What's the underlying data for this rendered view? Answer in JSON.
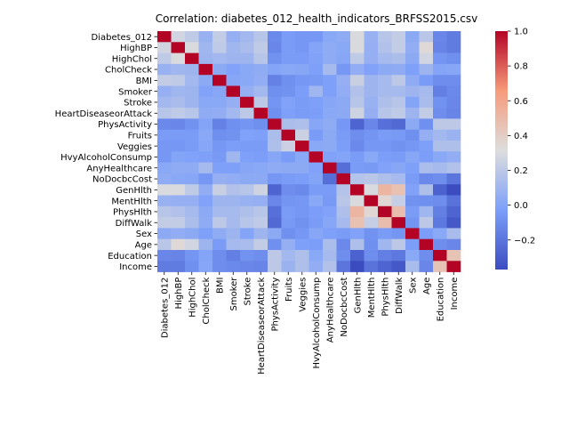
{
  "chart_data": {
    "type": "heatmap",
    "title": "Correlation: diabetes_012_health_indicators_BRFSS2015.csv",
    "xlabel": "",
    "ylabel": "",
    "labels": [
      "Diabetes_012",
      "HighBP",
      "HighChol",
      "CholCheck",
      "BMI",
      "Smoker",
      "Stroke",
      "HeartDiseaseorAttack",
      "PhysActivity",
      "Fruits",
      "Veggies",
      "HvyAlcoholConsump",
      "AnyHealthcare",
      "NoDocbcCost",
      "GenHlth",
      "MentHlth",
      "PhysHlth",
      "DiffWalk",
      "Sex",
      "Age",
      "Education",
      "Income"
    ],
    "values": [
      [
        1.0,
        0.27,
        0.21,
        0.07,
        0.22,
        0.06,
        0.11,
        0.18,
        -0.12,
        -0.04,
        -0.06,
        -0.06,
        0.02,
        0.04,
        0.3,
        0.07,
        0.18,
        0.22,
        0.03,
        0.19,
        -0.13,
        -0.17
      ],
      [
        0.27,
        1.0,
        0.3,
        0.1,
        0.21,
        0.1,
        0.13,
        0.21,
        -0.13,
        -0.04,
        -0.06,
        -0.0,
        0.04,
        0.02,
        0.3,
        0.06,
        0.16,
        0.22,
        0.05,
        0.34,
        -0.14,
        -0.17
      ],
      [
        0.21,
        0.3,
        1.0,
        0.09,
        0.11,
        0.09,
        0.09,
        0.18,
        -0.08,
        -0.04,
        -0.04,
        -0.01,
        0.04,
        0.01,
        0.21,
        0.06,
        0.12,
        0.14,
        0.03,
        0.27,
        -0.07,
        -0.09
      ],
      [
        0.07,
        0.1,
        0.09,
        1.0,
        0.03,
        -0.01,
        0.02,
        0.04,
        0.0,
        0.02,
        0.01,
        -0.02,
        0.12,
        -0.06,
        0.05,
        -0.01,
        0.03,
        0.04,
        -0.02,
        0.09,
        0.0,
        0.01
      ],
      [
        0.22,
        0.21,
        0.11,
        0.03,
        1.0,
        0.01,
        0.02,
        0.05,
        -0.15,
        -0.09,
        -0.06,
        -0.05,
        -0.02,
        0.06,
        0.24,
        0.09,
        0.12,
        0.2,
        0.04,
        -0.04,
        -0.1,
        -0.1
      ],
      [
        0.06,
        0.1,
        0.09,
        -0.01,
        0.01,
        1.0,
        0.06,
        0.11,
        -0.09,
        -0.08,
        -0.03,
        0.1,
        -0.02,
        0.05,
        0.16,
        0.09,
        0.12,
        0.12,
        0.09,
        0.12,
        -0.16,
        -0.12
      ],
      [
        0.11,
        0.13,
        0.09,
        0.02,
        0.02,
        0.06,
        1.0,
        0.2,
        -0.07,
        -0.01,
        -0.04,
        -0.02,
        0.01,
        0.03,
        0.18,
        0.07,
        0.15,
        0.18,
        0.0,
        0.13,
        -0.08,
        -0.13
      ],
      [
        0.18,
        0.21,
        0.18,
        0.04,
        0.05,
        0.11,
        0.2,
        1.0,
        -0.09,
        -0.02,
        -0.04,
        -0.03,
        0.02,
        0.03,
        0.26,
        0.06,
        0.18,
        0.21,
        0.09,
        0.22,
        -0.1,
        -0.14
      ],
      [
        -0.12,
        -0.13,
        -0.08,
        0.0,
        -0.15,
        -0.09,
        -0.07,
        -0.09,
        1.0,
        0.14,
        0.15,
        0.01,
        0.04,
        -0.06,
        -0.27,
        -0.13,
        -0.22,
        -0.25,
        0.03,
        -0.09,
        0.2,
        0.2
      ],
      [
        -0.04,
        -0.04,
        -0.04,
        0.02,
        -0.09,
        -0.08,
        -0.01,
        -0.02,
        0.14,
        1.0,
        0.25,
        -0.04,
        0.03,
        -0.04,
        -0.1,
        -0.07,
        -0.04,
        -0.05,
        -0.09,
        0.06,
        0.11,
        0.08
      ],
      [
        -0.06,
        -0.06,
        -0.04,
        0.01,
        -0.06,
        -0.03,
        -0.04,
        -0.04,
        0.15,
        0.25,
        1.0,
        0.02,
        0.03,
        -0.03,
        -0.12,
        -0.06,
        -0.06,
        -0.08,
        -0.06,
        -0.02,
        0.15,
        0.15
      ],
      [
        -0.06,
        -0.0,
        -0.01,
        -0.02,
        -0.05,
        0.1,
        -0.02,
        -0.03,
        0.01,
        -0.04,
        0.02,
        1.0,
        -0.01,
        0.0,
        -0.04,
        0.02,
        -0.03,
        -0.04,
        0.01,
        -0.03,
        0.02,
        0.05
      ],
      [
        0.02,
        0.04,
        0.04,
        0.12,
        -0.02,
        -0.02,
        0.01,
        0.02,
        0.04,
        0.03,
        0.03,
        -0.01,
        1.0,
        -0.23,
        -0.04,
        -0.05,
        -0.01,
        0.01,
        -0.02,
        0.14,
        0.12,
        0.16
      ],
      [
        0.04,
        0.02,
        0.01,
        -0.06,
        0.06,
        0.05,
        0.03,
        0.03,
        -0.06,
        -0.04,
        -0.03,
        0.0,
        -0.23,
        1.0,
        0.17,
        0.19,
        0.15,
        0.12,
        -0.04,
        -0.12,
        -0.1,
        -0.2
      ],
      [
        0.3,
        0.3,
        0.21,
        0.05,
        0.24,
        0.16,
        0.18,
        0.26,
        -0.27,
        -0.1,
        -0.12,
        -0.04,
        -0.04,
        0.17,
        1.0,
        0.3,
        0.52,
        0.46,
        -0.01,
        0.15,
        -0.28,
        -0.37
      ],
      [
        0.07,
        0.06,
        0.06,
        -0.01,
        0.09,
        0.09,
        0.07,
        0.06,
        -0.13,
        -0.07,
        -0.06,
        0.02,
        -0.05,
        0.19,
        0.3,
        1.0,
        0.35,
        0.23,
        -0.08,
        -0.09,
        -0.1,
        -0.21
      ],
      [
        0.18,
        0.16,
        0.12,
        0.03,
        0.12,
        0.12,
        0.15,
        0.18,
        -0.22,
        -0.04,
        -0.06,
        -0.03,
        -0.01,
        0.15,
        0.52,
        0.35,
        1.0,
        0.48,
        -0.04,
        0.1,
        -0.16,
        -0.27
      ],
      [
        0.22,
        0.22,
        0.14,
        0.04,
        0.2,
        0.12,
        0.18,
        0.21,
        -0.25,
        -0.05,
        -0.08,
        -0.04,
        0.01,
        0.12,
        0.46,
        0.23,
        0.48,
        1.0,
        -0.07,
        0.2,
        -0.19,
        -0.32
      ],
      [
        0.03,
        0.05,
        0.03,
        -0.02,
        0.04,
        0.09,
        0.0,
        0.09,
        0.03,
        -0.09,
        -0.06,
        0.01,
        -0.02,
        -0.04,
        -0.01,
        -0.08,
        -0.04,
        -0.07,
        1.0,
        -0.03,
        0.02,
        0.13
      ],
      [
        0.19,
        0.34,
        0.27,
        0.09,
        -0.04,
        0.12,
        0.13,
        0.22,
        -0.09,
        0.06,
        -0.02,
        -0.03,
        0.14,
        -0.12,
        0.15,
        -0.09,
        0.1,
        0.2,
        -0.03,
        1.0,
        -0.1,
        -0.13
      ],
      [
        -0.13,
        -0.14,
        -0.07,
        0.0,
        -0.1,
        -0.16,
        -0.08,
        -0.1,
        0.2,
        0.11,
        0.15,
        0.02,
        0.12,
        -0.1,
        -0.28,
        -0.1,
        -0.16,
        -0.19,
        0.02,
        -0.1,
        1.0,
        0.45
      ],
      [
        -0.17,
        -0.17,
        -0.09,
        0.01,
        -0.1,
        -0.12,
        -0.13,
        -0.14,
        0.2,
        0.08,
        0.15,
        0.05,
        0.16,
        -0.2,
        -0.37,
        -0.21,
        -0.27,
        -0.32,
        0.13,
        -0.13,
        0.45,
        1.0
      ]
    ],
    "colormap": "coolwarm",
    "vmin": -0.37,
    "vmax": 1.0,
    "colorbar_ticks": [
      1.0,
      0.8,
      0.6,
      0.4,
      0.2,
      0.0,
      -0.2
    ],
    "colorbar_tick_labels": [
      "1.0",
      "0.8",
      "0.6",
      "0.4",
      "0.2",
      "0.0",
      "−0.2"
    ],
    "grid": false,
    "legend": "colorbar-right"
  }
}
